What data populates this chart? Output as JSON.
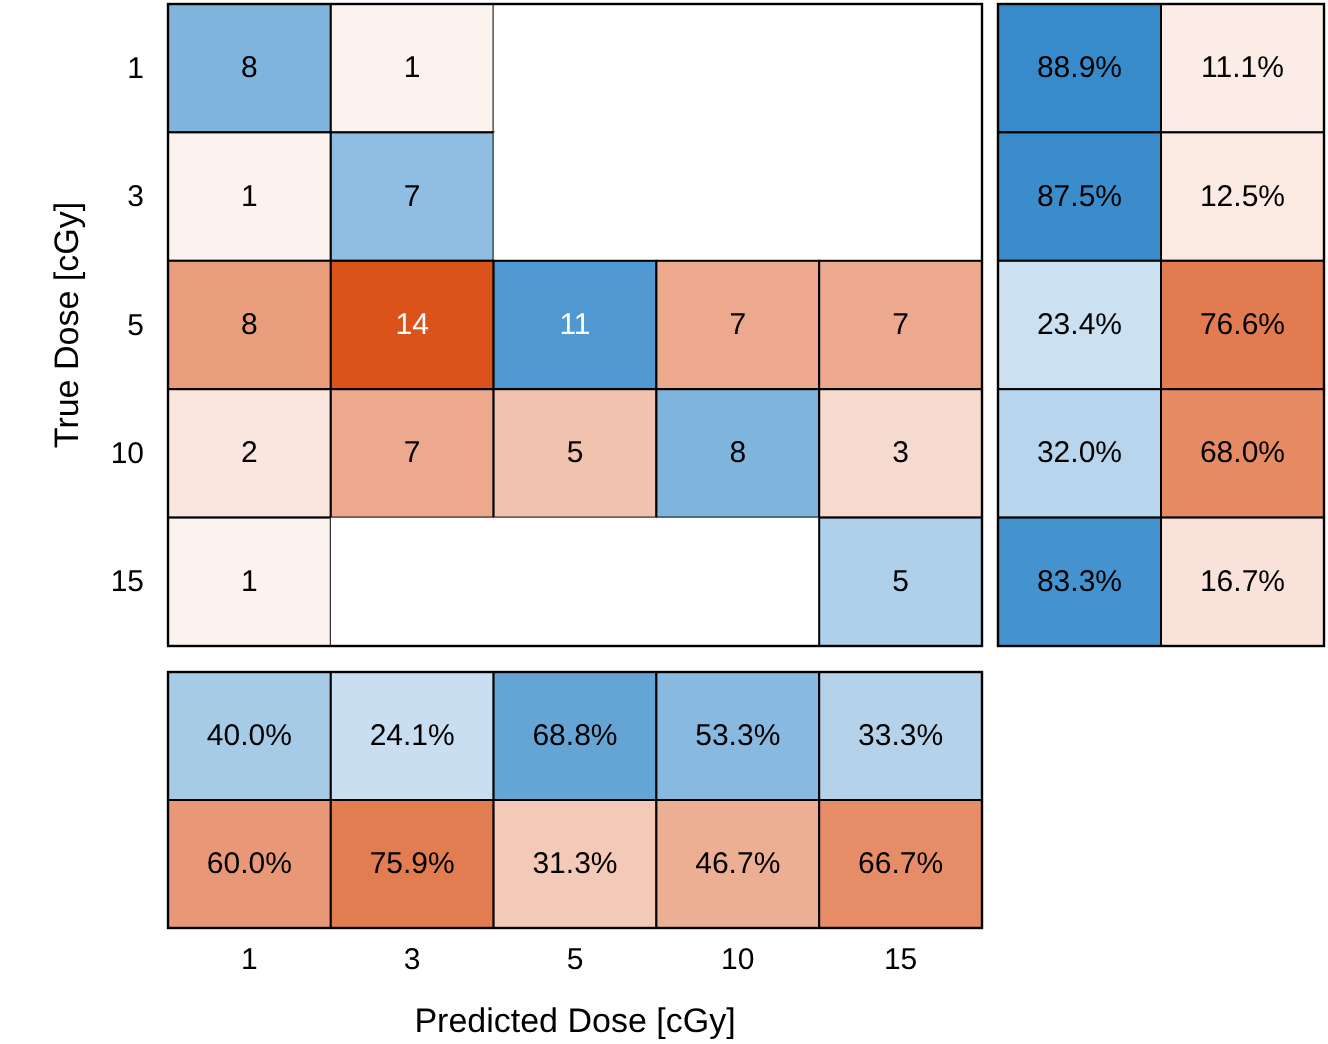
{
  "chart_data": [
    {
      "type": "heatmap",
      "ylabel": "True Dose [cGy]",
      "categories": [
        null,
        null,
        null,
        null,
        null
      ],
      "y_categories": [
        "1",
        "3",
        "5",
        "10",
        "15"
      ],
      "tick_labels": "y",
      "data_labels": true,
      "cells": [
        [
          8,
          1,
          null,
          null,
          null
        ],
        [
          1,
          7,
          null,
          null,
          null
        ],
        [
          8,
          14,
          11,
          7,
          7
        ],
        [
          2,
          7,
          5,
          8,
          3
        ],
        [
          1,
          null,
          null,
          null,
          5
        ]
      ]
    },
    {
      "type": "heatmap",
      "categories": [
        null,
        null
      ],
      "y_categories": [
        null,
        null,
        null,
        null,
        null
      ],
      "tick_labels": false,
      "cells": [
        [
          88.9,
          11.1
        ],
        [
          87.5,
          12.5
        ],
        [
          23.4,
          76.6
        ],
        [
          32.0,
          68.0
        ],
        [
          83.3,
          16.7
        ]
      ],
      "cell_labels": [
        [
          "88.9%",
          "11.1%"
        ],
        [
          "87.5%",
          "12.5%"
        ],
        [
          "23.4%",
          "76.6%"
        ],
        [
          "32.0%",
          "68.0%"
        ],
        [
          "83.3%",
          "16.7%"
        ]
      ]
    },
    {
      "type": "heatmap",
      "xlabel": "Predicted Dose [cGy]",
      "categories": [
        "1",
        "3",
        "5",
        "10",
        "15"
      ],
      "y_categories": [
        null,
        null
      ],
      "tick_labels": "x",
      "cells": [
        [
          40.0,
          24.1,
          68.8,
          53.3,
          33.3
        ],
        [
          60.0,
          75.9,
          31.3,
          46.7,
          66.7
        ]
      ],
      "cell_labels": [
        [
          "40.0%",
          "24.1%",
          "68.8%",
          "53.3%",
          "33.3%"
        ],
        [
          "60.0%",
          "75.9%",
          "31.3%",
          "46.7%",
          "66.7%"
        ]
      ]
    }
  ]
}
